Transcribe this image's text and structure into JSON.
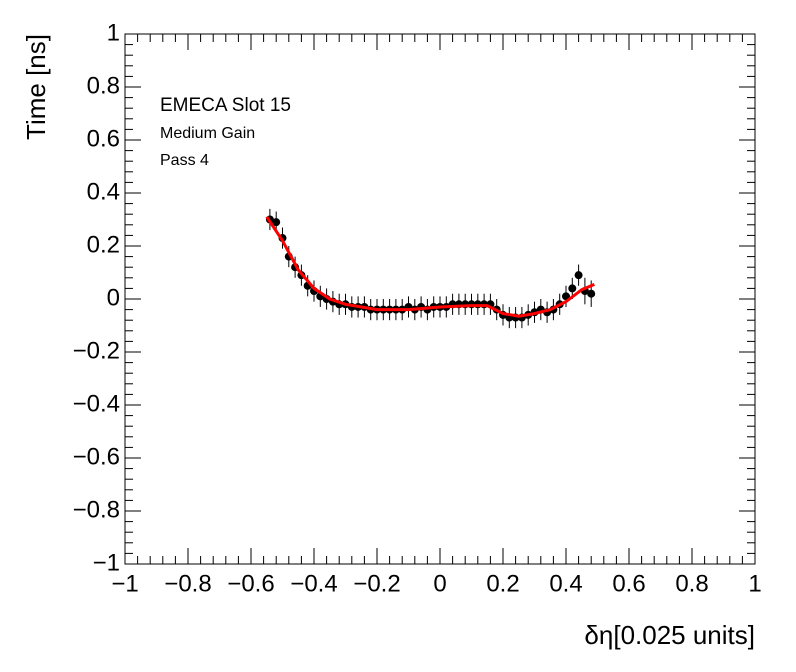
{
  "chart_data": {
    "type": "scatter",
    "xlabel": "δη[0.025 units]",
    "ylabel": "Time [ns]",
    "annotations": [
      "EMECA Slot 15",
      "Medium Gain",
      "Pass 4"
    ],
    "xlim": [
      -1,
      1
    ],
    "ylim": [
      -1,
      1
    ],
    "xticks": [
      {
        "value": -1,
        "label": "−1"
      },
      {
        "value": -0.8,
        "label": "−0.8"
      },
      {
        "value": -0.6,
        "label": "−0.6"
      },
      {
        "value": -0.4,
        "label": "−0.4"
      },
      {
        "value": -0.2,
        "label": "−0.2"
      },
      0,
      0.2,
      0.4,
      0.6,
      0.8,
      1
    ],
    "yticks": [
      {
        "value": -1,
        "label": "−1"
      },
      {
        "value": -0.8,
        "label": "−0.8"
      },
      {
        "value": -0.6,
        "label": "−0.6"
      },
      {
        "value": -0.4,
        "label": "−0.4"
      },
      {
        "value": -0.2,
        "label": "−0.2"
      },
      0,
      0.2,
      0.4,
      0.6,
      0.8,
      1
    ],
    "series": [
      {
        "color": "#000000",
        "x": [
          -0.54,
          -0.52,
          -0.5,
          -0.48,
          -0.46,
          -0.44,
          -0.42,
          -0.4,
          -0.38,
          -0.36,
          -0.34,
          -0.32,
          -0.3,
          -0.28,
          -0.26,
          -0.24,
          -0.22,
          -0.2,
          -0.18,
          -0.16,
          -0.14,
          -0.12,
          -0.1,
          -0.08,
          -0.06,
          -0.04,
          -0.02,
          0,
          0.02,
          0.04,
          0.06,
          0.08,
          0.1,
          0.12,
          0.14,
          0.16,
          0.18,
          0.2,
          0.22,
          0.24,
          0.26,
          0.28,
          0.3,
          0.32,
          0.34,
          0.36,
          0.38,
          0.4,
          0.42,
          0.44,
          0.46,
          0.48
        ],
        "values": [
          0.3,
          0.29,
          0.23,
          0.16,
          0.12,
          0.09,
          0.05,
          0.03,
          0.01,
          0,
          -0.01,
          -0.02,
          -0.02,
          -0.03,
          -0.03,
          -0.03,
          -0.04,
          -0.04,
          -0.04,
          -0.04,
          -0.04,
          -0.04,
          -0.03,
          -0.04,
          -0.03,
          -0.04,
          -0.03,
          -0.03,
          -0.03,
          -0.02,
          -0.02,
          -0.02,
          -0.02,
          -0.02,
          -0.02,
          -0.02,
          -0.04,
          -0.06,
          -0.07,
          -0.07,
          -0.07,
          -0.06,
          -0.05,
          -0.04,
          -0.05,
          -0.04,
          -0.02,
          0.01,
          0.04,
          0.09,
          0.03,
          0.02
        ],
        "errors": [
          0.04,
          0.04,
          0.04,
          0.04,
          0.04,
          0.04,
          0.04,
          0.04,
          0.04,
          0.04,
          0.04,
          0.04,
          0.04,
          0.04,
          0.04,
          0.04,
          0.04,
          0.04,
          0.04,
          0.04,
          0.04,
          0.04,
          0.04,
          0.04,
          0.04,
          0.04,
          0.04,
          0.04,
          0.04,
          0.04,
          0.04,
          0.04,
          0.04,
          0.04,
          0.04,
          0.04,
          0.04,
          0.04,
          0.04,
          0.04,
          0.04,
          0.04,
          0.04,
          0.04,
          0.04,
          0.04,
          0.04,
          0.04,
          0.04,
          0.04,
          0.05,
          0.05
        ]
      },
      {
        "color": "#ff0000",
        "line": true,
        "x": [
          -0.55,
          -0.5,
          -0.45,
          -0.4,
          -0.35,
          -0.3,
          -0.2,
          -0.1,
          0,
          0.1,
          0.15,
          0.2,
          0.25,
          0.3,
          0.35,
          0.4,
          0.45,
          0.49
        ],
        "values": [
          0.31,
          0.22,
          0.11,
          0.04,
          0,
          -0.02,
          -0.04,
          -0.04,
          -0.03,
          -0.025,
          -0.025,
          -0.055,
          -0.065,
          -0.055,
          -0.04,
          -0.01,
          0.035,
          0.055
        ]
      }
    ]
  }
}
